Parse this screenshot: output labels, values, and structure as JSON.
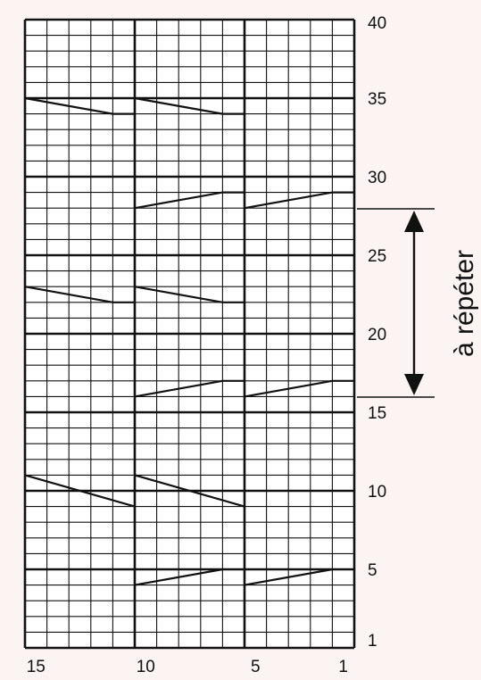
{
  "chart": {
    "columns": 15,
    "rows": 40,
    "row_labels": [
      "1",
      "5",
      "10",
      "15",
      "20",
      "25",
      "30",
      "35",
      "40"
    ],
    "col_labels": [
      "15",
      "10",
      "5",
      "1"
    ],
    "repeat_label": "à répéter",
    "colors": {
      "background": "#fcf3f3",
      "grid_fill": "#ffffff",
      "line": "#111111"
    }
  }
}
